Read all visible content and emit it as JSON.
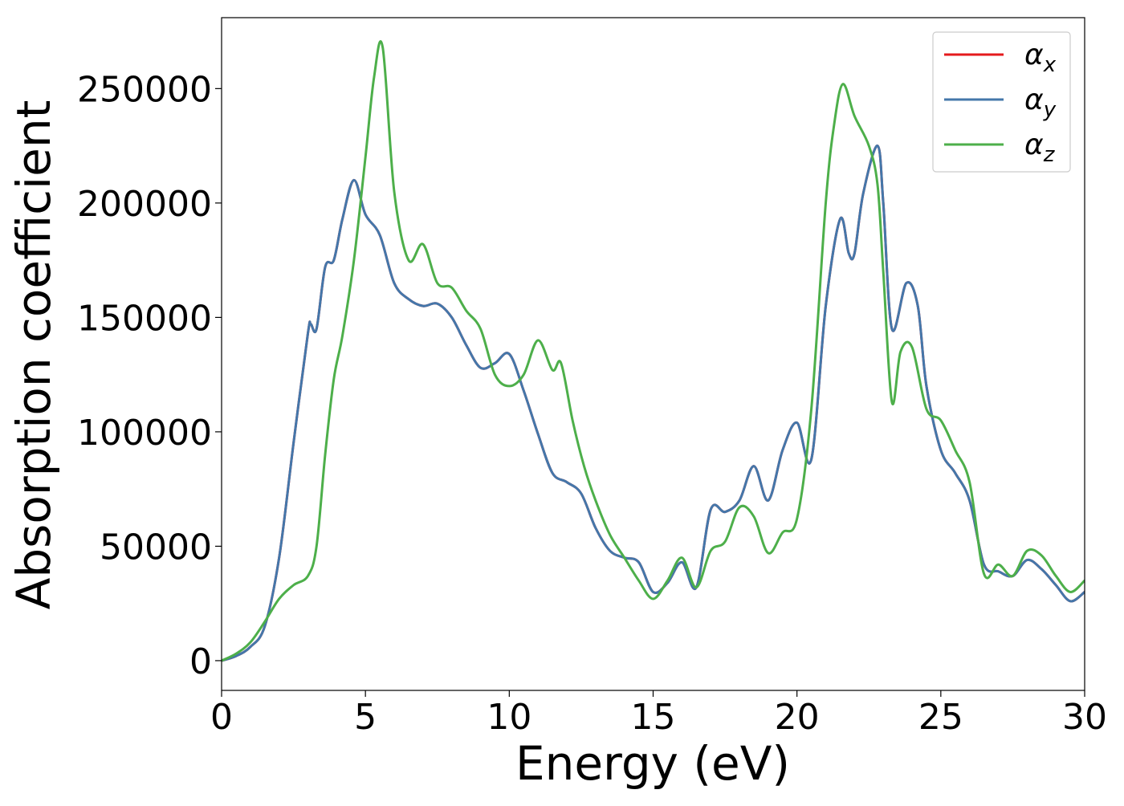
{
  "chart_data": {
    "type": "line",
    "xlabel": "Energy (eV)",
    "ylabel": "Absorption coefficient",
    "xlim": [
      0,
      30
    ],
    "ylim": [
      -13000,
      281000
    ],
    "xticks": [
      0,
      5,
      10,
      15,
      20,
      25,
      30
    ],
    "yticks": [
      0,
      50000,
      100000,
      150000,
      200000,
      250000
    ],
    "grid": false,
    "legend_position": "top-right",
    "series": [
      {
        "name": "αx",
        "color": "#e41a1c",
        "x": [
          0,
          0.5,
          1,
          1.5,
          2,
          2.5,
          3,
          3.1,
          3.3,
          3.6,
          3.9,
          4.2,
          4.6,
          5,
          5.5,
          6,
          6.5,
          7,
          7.5,
          8,
          8.5,
          9,
          9.5,
          10,
          10.5,
          11,
          11.5,
          12,
          12.5,
          13,
          13.5,
          14,
          14.5,
          15,
          15.5,
          16,
          16.5,
          17,
          17.5,
          18,
          18.5,
          19,
          19.5,
          20,
          20.5,
          21,
          21.5,
          21.8,
          22,
          22.3,
          22.8,
          23,
          23.3,
          23.8,
          24.2,
          24.5,
          25,
          25.5,
          26,
          26.5,
          27,
          27.5,
          28,
          28.5,
          29,
          29.5,
          30
        ],
        "y": [
          0,
          2000,
          6000,
          15000,
          45000,
          95000,
          143000,
          147000,
          145000,
          172000,
          175000,
          193000,
          210000,
          195000,
          186000,
          165000,
          158000,
          155000,
          156000,
          150000,
          138000,
          128000,
          130000,
          134000,
          118000,
          99000,
          82000,
          78000,
          73000,
          58000,
          48000,
          45000,
          43000,
          30000,
          34000,
          43000,
          32000,
          66000,
          65000,
          70000,
          85000,
          70000,
          92000,
          104000,
          88000,
          155000,
          193000,
          178000,
          178000,
          204000,
          225000,
          200000,
          145000,
          165000,
          155000,
          120000,
          92000,
          82000,
          70000,
          42000,
          39000,
          37000,
          44000,
          40000,
          33000,
          26000,
          30000
        ]
      },
      {
        "name": "αy",
        "color": "#4477aa",
        "x": [
          0,
          0.5,
          1,
          1.5,
          2,
          2.5,
          3,
          3.1,
          3.3,
          3.6,
          3.9,
          4.2,
          4.6,
          5,
          5.5,
          6,
          6.5,
          7,
          7.5,
          8,
          8.5,
          9,
          9.5,
          10,
          10.5,
          11,
          11.5,
          12,
          12.5,
          13,
          13.5,
          14,
          14.5,
          15,
          15.5,
          16,
          16.5,
          17,
          17.5,
          18,
          18.5,
          19,
          19.5,
          20,
          20.5,
          21,
          21.5,
          21.8,
          22,
          22.3,
          22.8,
          23,
          23.3,
          23.8,
          24.2,
          24.5,
          25,
          25.5,
          26,
          26.5,
          27,
          27.5,
          28,
          28.5,
          29,
          29.5,
          30
        ],
        "y": [
          0,
          2000,
          6000,
          15000,
          45000,
          95000,
          143000,
          147000,
          145000,
          172000,
          175000,
          193000,
          210000,
          195000,
          186000,
          165000,
          158000,
          155000,
          156000,
          150000,
          138000,
          128000,
          130000,
          134000,
          118000,
          99000,
          82000,
          78000,
          73000,
          58000,
          48000,
          45000,
          43000,
          30000,
          34000,
          43000,
          32000,
          66000,
          65000,
          70000,
          85000,
          70000,
          92000,
          104000,
          88000,
          155000,
          193000,
          178000,
          178000,
          204000,
          225000,
          200000,
          145000,
          165000,
          155000,
          120000,
          92000,
          82000,
          70000,
          42000,
          39000,
          37000,
          44000,
          40000,
          33000,
          26000,
          30000
        ]
      },
      {
        "name": "αz",
        "color": "#4daf4a",
        "x": [
          0,
          0.5,
          1,
          1.5,
          2,
          2.5,
          3,
          3.3,
          3.6,
          3.9,
          4.2,
          4.6,
          5,
          5.3,
          5.6,
          6,
          6.5,
          7,
          7.5,
          8,
          8.5,
          9,
          9.5,
          10,
          10.5,
          11,
          11.5,
          11.8,
          12.2,
          12.6,
          13,
          13.5,
          14,
          14.5,
          15,
          15.5,
          16,
          16.5,
          17,
          17.5,
          18,
          18.5,
          19,
          19.5,
          20,
          20.5,
          21,
          21.3,
          21.6,
          22,
          22.5,
          22.8,
          23,
          23.3,
          23.6,
          24,
          24.5,
          25,
          25.5,
          26,
          26.5,
          27,
          27.5,
          28,
          28.5,
          29,
          29.5,
          30
        ],
        "y": [
          0,
          3000,
          8000,
          17000,
          27000,
          33000,
          37000,
          50000,
          90000,
          123000,
          142000,
          175000,
          220000,
          255000,
          268000,
          205000,
          175000,
          182000,
          165000,
          163000,
          153000,
          145000,
          125000,
          120000,
          125000,
          140000,
          127000,
          130000,
          105000,
          85000,
          70000,
          55000,
          45000,
          35000,
          27000,
          35000,
          45000,
          32000,
          48000,
          52000,
          67000,
          63000,
          47000,
          56000,
          62000,
          110000,
          200000,
          235000,
          252000,
          238000,
          225000,
          208000,
          170000,
          113000,
          135000,
          137000,
          110000,
          105000,
          92000,
          78000,
          38000,
          42000,
          37000,
          48000,
          46000,
          37000,
          30000,
          35000
        ]
      }
    ]
  }
}
